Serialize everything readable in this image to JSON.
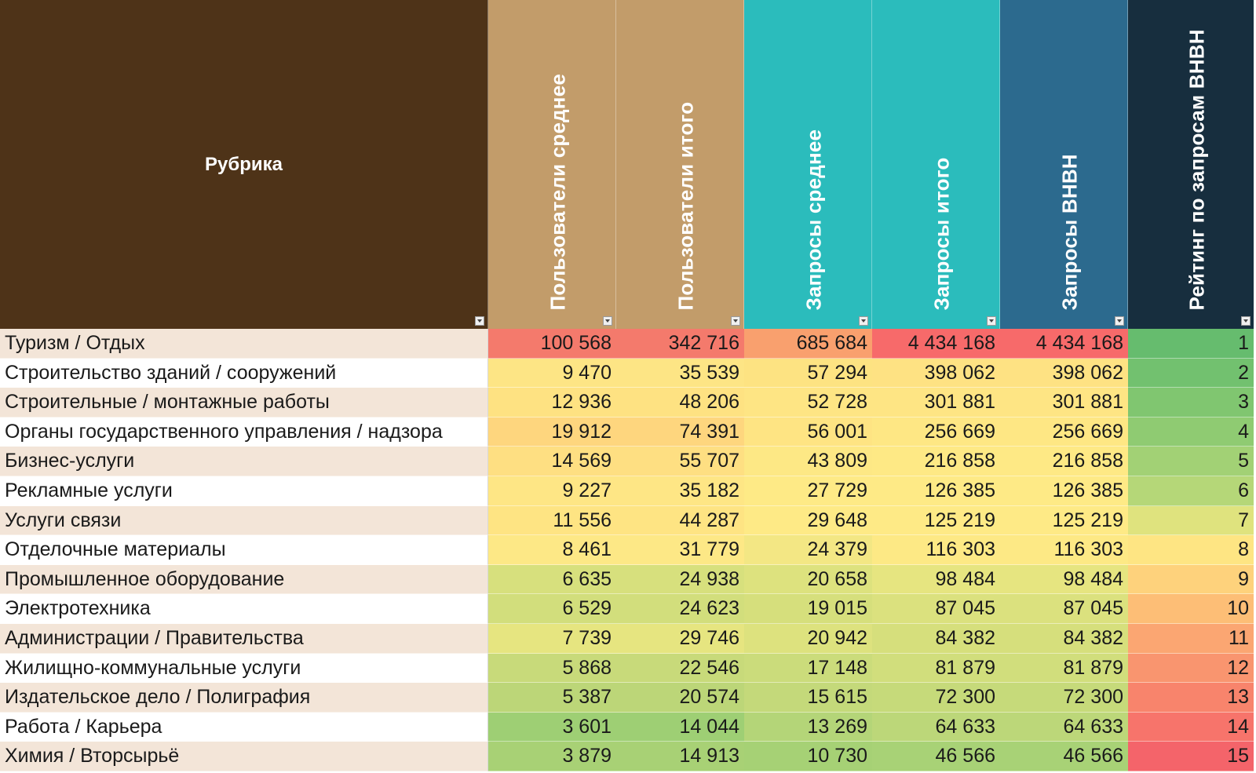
{
  "headers": {
    "rubric": "Рубрика",
    "users_avg": "Пользователи среднее",
    "users_total": "Пользователи итого",
    "queries_avg": "Запросы среднее",
    "queries_total": "Запросы итого",
    "queries_vnvn": "Запросы ВНВН",
    "rating": "Рейтинг по запросам ВНВН"
  },
  "header_colors": {
    "rubric": "#4e3318",
    "users": "#c29c6a",
    "queries": "#2bbcbc",
    "vnvn": "#2c6a8e",
    "rating": "#172e3e"
  },
  "rows": [
    {
      "rubric": "Туризм / Отдых",
      "users_avg": "100 568",
      "users_total": "342 716",
      "queries_avg": "685 684",
      "queries_total": "4 434 168",
      "queries_vnvn": "4 434 168",
      "rating": "1",
      "colors": [
        "#f47a6c",
        "#f47a6c",
        "#f9a06e",
        "#f76a6a",
        "#f76a6a",
        "#66bc6e"
      ]
    },
    {
      "rubric": "Строительство зданий / сооружений",
      "users_avg": "9 470",
      "users_total": "35 539",
      "queries_avg": "57 294",
      "queries_total": "398 062",
      "queries_vnvn": "398 062",
      "rating": "2",
      "colors": [
        "#fde585",
        "#fde585",
        "#fde382",
        "#fee283",
        "#fee283",
        "#72c16f"
      ]
    },
    {
      "rubric": "Строительные / монтажные работы",
      "users_avg": "12 936",
      "users_total": "48 206",
      "queries_avg": "52 728",
      "queries_total": "301 881",
      "queries_vnvn": "301 881",
      "rating": "3",
      "colors": [
        "#fee282",
        "#fee282",
        "#fee584",
        "#fee584",
        "#fee584",
        "#80c670"
      ]
    },
    {
      "rubric": "Органы государственного управления / надзора",
      "users_avg": "19 912",
      "users_total": "74 391",
      "queries_avg": "56 001",
      "queries_total": "256 669",
      "queries_vnvn": "256 669",
      "rating": "4",
      "colors": [
        "#fed67e",
        "#fed67e",
        "#fee483",
        "#fee784",
        "#fee784",
        "#8fcb72"
      ]
    },
    {
      "rubric": "Бизнес-услуги",
      "users_avg": "14 569",
      "users_total": "55 707",
      "queries_avg": "43 809",
      "queries_total": "216 858",
      "queries_vnvn": "216 858",
      "rating": "5",
      "colors": [
        "#fedf82",
        "#fedf82",
        "#fde885",
        "#fee985",
        "#fee985",
        "#a2d175"
      ]
    },
    {
      "rubric": "Рекламные услуги",
      "users_avg": "9 227",
      "users_total": "35 182",
      "queries_avg": "27 729",
      "queries_total": "126 385",
      "queries_vnvn": "126 385",
      "rating": "6",
      "colors": [
        "#fee685",
        "#fee685",
        "#feea86",
        "#feea86",
        "#feea86",
        "#b5d778"
      ]
    },
    {
      "rubric": "Услуги связи",
      "users_avg": "11 556",
      "users_total": "44 287",
      "queries_avg": "29 648",
      "queries_total": "125 219",
      "queries_vnvn": "125 219",
      "rating": "7",
      "colors": [
        "#fee483",
        "#fee483",
        "#feea86",
        "#feea86",
        "#feea86",
        "#dfe37e"
      ]
    },
    {
      "rubric": "Отделочные материалы",
      "users_avg": "8 461",
      "users_total": "31 779",
      "queries_avg": "24 379",
      "queries_total": "116 303",
      "queries_vnvn": "116 303",
      "rating": "8",
      "colors": [
        "#fde886",
        "#fde886",
        "#f3e784",
        "#fde985",
        "#fde985",
        "#fee583"
      ]
    },
    {
      "rubric": "Промышленное оборудование",
      "users_avg": "6 635",
      "users_total": "24 938",
      "queries_avg": "20 658",
      "queries_total": "98 484",
      "queries_vnvn": "98 484",
      "rating": "9",
      "colors": [
        "#d7e07d",
        "#d7e07d",
        "#dde27e",
        "#e6e580",
        "#e6e580",
        "#fed27c"
      ]
    },
    {
      "rubric": "Электротехника",
      "users_avg": "6 529",
      "users_total": "24 623",
      "queries_avg": "19 015",
      "queries_total": "87 045",
      "queries_vnvn": "87 045",
      "rating": "10",
      "colors": [
        "#d2de7c",
        "#d2de7c",
        "#d6df7c",
        "#dbe17e",
        "#dbe17e",
        "#fdbe76"
      ]
    },
    {
      "rubric": "Администрации / Правительства",
      "users_avg": "7 739",
      "users_total": "29 746",
      "queries_avg": "20 942",
      "queries_total": "84 382",
      "queries_vnvn": "84 382",
      "rating": "11",
      "colors": [
        "#e6e580",
        "#e6e580",
        "#dde27e",
        "#d6df7c",
        "#d6df7c",
        "#fba672"
      ]
    },
    {
      "rubric": "Жилищно-коммунальные услуги",
      "users_avg": "5 868",
      "users_total": "22 546",
      "queries_avg": "17 148",
      "queries_total": "81 879",
      "queries_vnvn": "81 879",
      "rating": "12",
      "colors": [
        "#c8da7a",
        "#c8da7a",
        "#cbdc7b",
        "#d1de7c",
        "#d1de7c",
        "#f9956f"
      ]
    },
    {
      "rubric": "Издательское дело / Полиграфия",
      "users_avg": "5 387",
      "users_total": "20 574",
      "queries_avg": "15 615",
      "queries_total": "72 300",
      "queries_vnvn": "72 300",
      "rating": "13",
      "colors": [
        "#bcd678",
        "#bcd678",
        "#c4d97a",
        "#c6da7a",
        "#c6da7a",
        "#f8846c"
      ]
    },
    {
      "rubric": "Работа / Карьера",
      "users_avg": "3 601",
      "users_total": "14 044",
      "queries_avg": "13 269",
      "queries_total": "64 633",
      "queries_vnvn": "64 633",
      "rating": "14",
      "colors": [
        "#9ecf74",
        "#9ecf74",
        "#b4d578",
        "#bcd779",
        "#bcd779",
        "#f7746b"
      ]
    },
    {
      "rubric": "Химия / Вторсырьё",
      "users_avg": "3 879",
      "users_total": "14 913",
      "queries_avg": "10 730",
      "queries_total": "46 566",
      "queries_vnvn": "46 566",
      "rating": "15",
      "colors": [
        "#a8d175",
        "#a8d175",
        "#a6d175",
        "#a8d276",
        "#a8d276",
        "#f4646a"
      ]
    }
  ]
}
